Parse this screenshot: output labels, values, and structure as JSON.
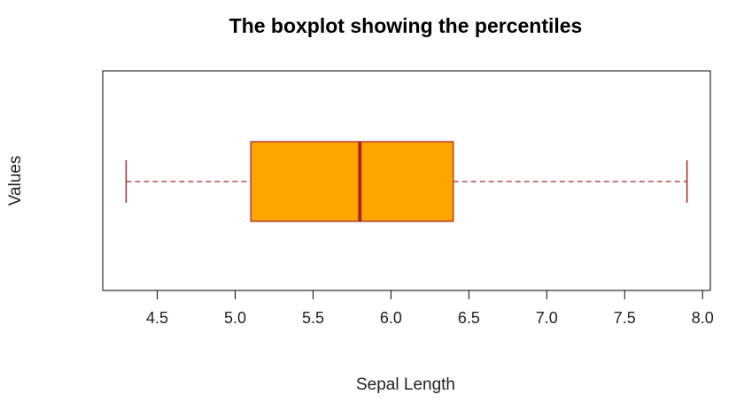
{
  "chart_data": {
    "type": "boxplot",
    "orientation": "horizontal",
    "title": "The boxplot showing the percentiles",
    "xlabel": "Sepal Length",
    "ylabel": "Values",
    "xlim": [
      4.15,
      8.05
    ],
    "ticks": [
      4.5,
      5.0,
      5.5,
      6.0,
      6.5,
      7.0,
      7.5,
      8.0
    ],
    "tick_labels": [
      "4.5",
      "5.0",
      "5.5",
      "6.0",
      "6.5",
      "7.0",
      "7.5",
      "8.0"
    ],
    "box": {
      "min": 4.3,
      "q1": 5.1,
      "median": 5.8,
      "q3": 6.4,
      "max": 7.9
    },
    "colors": {
      "box_fill": "#FFA500",
      "border": "#A52A2A"
    },
    "grid": false
  }
}
